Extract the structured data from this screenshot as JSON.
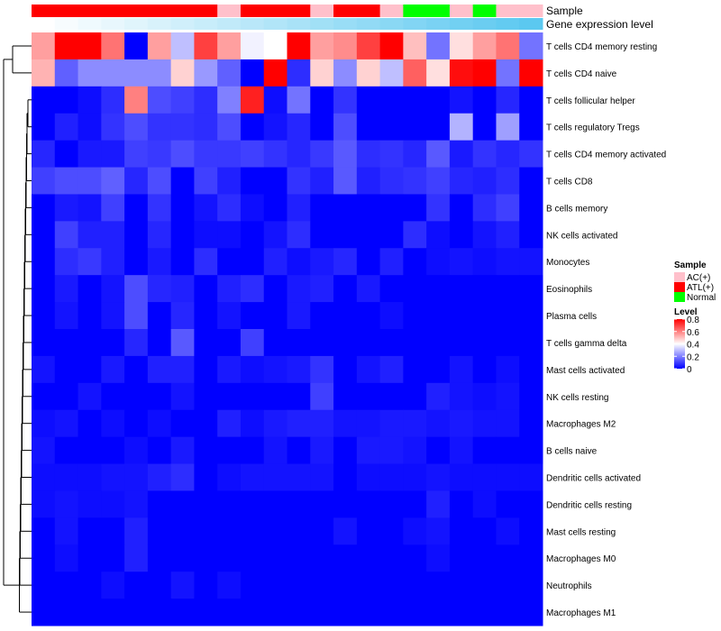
{
  "chart_data": {
    "type": "heatmap",
    "title": "",
    "annotation_tracks": [
      {
        "name": "Sample",
        "label": "Sample",
        "values": [
          "ATL(+)",
          "ATL(+)",
          "ATL(+)",
          "ATL(+)",
          "ATL(+)",
          "ATL(+)",
          "ATL(+)",
          "ATL(+)",
          "AC(+)",
          "ATL(+)",
          "ATL(+)",
          "ATL(+)",
          "AC(+)",
          "ATL(+)",
          "ATL(+)",
          "AC(+)",
          "Normal",
          "Normal",
          "AC(+)",
          "Normal",
          "AC(+)",
          "AC(+)"
        ]
      },
      {
        "name": "Gene expression level",
        "label": "Gene expression level",
        "values": [
          0.0,
          0.04,
          0.08,
          0.12,
          0.16,
          0.2,
          0.24,
          0.28,
          0.32,
          0.36,
          0.4,
          0.44,
          0.48,
          0.52,
          0.56,
          0.6,
          0.64,
          0.68,
          0.72,
          0.76,
          0.8,
          0.84
        ],
        "color_low": "#ffffff",
        "color_high": "#5bc8f0"
      }
    ],
    "rows": [
      "T cells CD4 memory resting",
      "T cells CD4 naive",
      "T cells follicular helper",
      "T cells regulatory  Tregs",
      "T cells CD4 memory activated",
      "T cells CD8",
      "B cells memory",
      "NK cells activated",
      "Monocytes",
      "Eosinophils",
      "Plasma cells",
      "T cells gamma delta",
      "Mast cells activated",
      "NK cells resting",
      "Macrophages M2",
      "B cells naive",
      "Dendritic cells activated",
      "Dendritic cells resting",
      "Mast cells resting",
      "Macrophages M0",
      "Neutrophils",
      "Macrophages M1"
    ],
    "values": [
      [
        0.55,
        0.8,
        0.8,
        0.62,
        0.0,
        0.55,
        0.3,
        0.7,
        0.55,
        0.38,
        0.4,
        0.8,
        0.55,
        0.58,
        0.7,
        0.8,
        0.5,
        0.18,
        0.45,
        0.55,
        0.62,
        0.18
      ],
      [
        0.52,
        0.15,
        0.22,
        0.22,
        0.22,
        0.22,
        0.47,
        0.24,
        0.15,
        0.0,
        0.8,
        0.07,
        0.47,
        0.22,
        0.47,
        0.3,
        0.65,
        0.45,
        0.78,
        0.8,
        0.18,
        0.8
      ],
      [
        0.0,
        0.0,
        0.02,
        0.07,
        0.6,
        0.12,
        0.1,
        0.07,
        0.2,
        0.75,
        0.02,
        0.18,
        0.0,
        0.08,
        0.0,
        0.0,
        0.0,
        0.0,
        0.03,
        0.0,
        0.06,
        0.0
      ],
      [
        0.0,
        0.05,
        0.02,
        0.08,
        0.12,
        0.08,
        0.08,
        0.07,
        0.12,
        0.0,
        0.03,
        0.06,
        0.0,
        0.12,
        0.0,
        0.0,
        0.0,
        0.0,
        0.28,
        0.0,
        0.25,
        0.0
      ],
      [
        0.06,
        0.0,
        0.04,
        0.04,
        0.1,
        0.09,
        0.12,
        0.09,
        0.09,
        0.1,
        0.08,
        0.06,
        0.09,
        0.14,
        0.07,
        0.08,
        0.06,
        0.14,
        0.04,
        0.08,
        0.06,
        0.08
      ],
      [
        0.1,
        0.12,
        0.12,
        0.15,
        0.06,
        0.12,
        0.0,
        0.1,
        0.05,
        0.0,
        0.0,
        0.08,
        0.05,
        0.14,
        0.05,
        0.07,
        0.08,
        0.1,
        0.06,
        0.05,
        0.07,
        0.0
      ],
      [
        0.0,
        0.04,
        0.03,
        0.1,
        0.0,
        0.08,
        0.0,
        0.03,
        0.07,
        0.02,
        0.0,
        0.05,
        0.0,
        0.0,
        0.0,
        0.0,
        0.0,
        0.08,
        0.0,
        0.07,
        0.1,
        0.0
      ],
      [
        0.0,
        0.1,
        0.05,
        0.05,
        0.0,
        0.06,
        0.0,
        0.02,
        0.02,
        0.0,
        0.03,
        0.07,
        0.0,
        0.0,
        0.0,
        0.0,
        0.07,
        0.02,
        0.0,
        0.03,
        0.05,
        0.0
      ],
      [
        0.0,
        0.07,
        0.09,
        0.05,
        0.0,
        0.04,
        0.0,
        0.07,
        0.0,
        0.0,
        0.05,
        0.02,
        0.04,
        0.06,
        0.0,
        0.05,
        0.0,
        0.02,
        0.03,
        0.02,
        0.03,
        0.03
      ],
      [
        0.0,
        0.04,
        0.0,
        0.03,
        0.12,
        0.06,
        0.05,
        0.0,
        0.05,
        0.07,
        0.0,
        0.04,
        0.05,
        0.0,
        0.04,
        0.0,
        0.0,
        0.0,
        0.0,
        0.0,
        0.0,
        0.0
      ],
      [
        0.0,
        0.03,
        0.0,
        0.03,
        0.12,
        0.0,
        0.06,
        0.0,
        0.03,
        0.0,
        0.0,
        0.04,
        0.0,
        0.0,
        0.0,
        0.02,
        0.0,
        0.0,
        0.0,
        0.0,
        0.0,
        0.0
      ],
      [
        0.0,
        0.0,
        0.0,
        0.0,
        0.06,
        0.0,
        0.14,
        0.0,
        0.0,
        0.1,
        0.0,
        0.0,
        0.0,
        0.0,
        0.0,
        0.0,
        0.0,
        0.0,
        0.0,
        0.0,
        0.0,
        0.0
      ],
      [
        0.03,
        0.0,
        0.0,
        0.04,
        0.0,
        0.05,
        0.05,
        0.0,
        0.04,
        0.02,
        0.03,
        0.04,
        0.08,
        0.0,
        0.03,
        0.05,
        0.0,
        0.0,
        0.03,
        0.0,
        0.02,
        0.0
      ],
      [
        0.0,
        0.0,
        0.03,
        0.0,
        0.0,
        0.0,
        0.03,
        0.0,
        0.0,
        0.0,
        0.0,
        0.0,
        0.1,
        0.0,
        0.0,
        0.0,
        0.0,
        0.05,
        0.03,
        0.02,
        0.03,
        0.0
      ],
      [
        0.02,
        0.03,
        0.0,
        0.02,
        0.0,
        0.02,
        0.0,
        0.0,
        0.05,
        0.02,
        0.04,
        0.05,
        0.05,
        0.03,
        0.03,
        0.04,
        0.04,
        0.03,
        0.04,
        0.03,
        0.03,
        0.0
      ],
      [
        0.03,
        0.0,
        0.0,
        0.0,
        0.02,
        0.0,
        0.04,
        0.0,
        0.0,
        0.0,
        0.03,
        0.0,
        0.04,
        0.0,
        0.04,
        0.04,
        0.03,
        0.0,
        0.03,
        0.0,
        0.0,
        0.0
      ],
      [
        0.02,
        0.02,
        0.02,
        0.03,
        0.03,
        0.05,
        0.07,
        0.0,
        0.02,
        0.03,
        0.03,
        0.03,
        0.03,
        0.0,
        0.02,
        0.02,
        0.02,
        0.03,
        0.02,
        0.02,
        0.02,
        0.02
      ],
      [
        0.02,
        0.03,
        0.02,
        0.02,
        0.03,
        0.0,
        0.0,
        0.0,
        0.0,
        0.0,
        0.0,
        0.0,
        0.0,
        0.0,
        0.0,
        0.0,
        0.0,
        0.05,
        0.0,
        0.02,
        0.0,
        0.0
      ],
      [
        0.0,
        0.03,
        0.0,
        0.0,
        0.05,
        0.0,
        0.0,
        0.0,
        0.0,
        0.0,
        0.0,
        0.0,
        0.0,
        0.03,
        0.0,
        0.0,
        0.02,
        0.03,
        0.0,
        0.0,
        0.02,
        0.0
      ],
      [
        0.0,
        0.02,
        0.0,
        0.0,
        0.05,
        0.0,
        0.0,
        0.0,
        0.0,
        0.0,
        0.0,
        0.0,
        0.0,
        0.0,
        0.0,
        0.0,
        0.0,
        0.02,
        0.0,
        0.0,
        0.0,
        0.0
      ],
      [
        0.0,
        0.0,
        0.0,
        0.02,
        0.0,
        0.0,
        0.03,
        0.0,
        0.02,
        0.0,
        0.0,
        0.0,
        0.0,
        0.0,
        0.0,
        0.0,
        0.0,
        0.0,
        0.0,
        0.0,
        0.0,
        0.0
      ],
      [
        0.0,
        0.0,
        0.0,
        0.0,
        0.0,
        0.0,
        0.0,
        0.0,
        0.0,
        0.0,
        0.0,
        0.0,
        0.0,
        0.0,
        0.0,
        0.0,
        0.0,
        0.0,
        0.0,
        0.0,
        0.0,
        0.0
      ]
    ],
    "color_scale": {
      "low": "#0000ff",
      "mid": "#ffffff",
      "high": "#ff0000",
      "min": 0,
      "mid_value": 0.4,
      "max": 0.8
    },
    "legend": {
      "sample_title": "Sample",
      "sample_entries": [
        {
          "label": "AC(+)",
          "color": "#ffc0cb"
        },
        {
          "label": "ATL(+)",
          "color": "#ff0000"
        },
        {
          "label": "Normal",
          "color": "#00ff00"
        }
      ],
      "level_title": "Level",
      "level_ticks": [
        "0.8",
        "0.6",
        "0.4",
        "0.2",
        "0"
      ],
      "level_tick_values": [
        0.8,
        0.6,
        0.4,
        0.2,
        0
      ],
      "placement": "right"
    },
    "row_dendrogram": true
  }
}
